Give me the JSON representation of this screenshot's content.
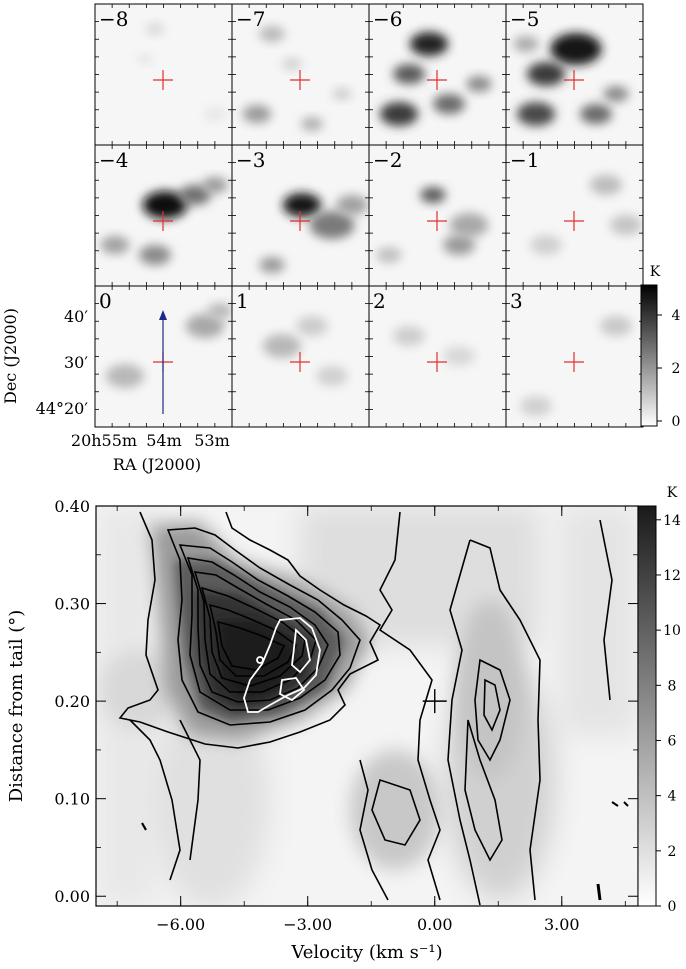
{
  "channel_maps": {
    "panel_labels": [
      "−8",
      "−7",
      "−6",
      "−5",
      "−4",
      "−3",
      "−2",
      "−1",
      "0",
      "1",
      "2",
      "3"
    ],
    "ra_ticks": [
      "20h55m",
      "54m",
      "53m"
    ],
    "dec_ticks": [
      "40′",
      "30′",
      "44°20′"
    ],
    "xlabel": "RA (J2000)",
    "ylabel": "Dec (J2000)",
    "colorbar": {
      "unit": "K",
      "ticks": [
        "0",
        "2",
        "4"
      ],
      "range": [
        0,
        5
      ]
    },
    "marker_color": "#e03030",
    "arrow_color": "#1a2a8a"
  },
  "chart_data": {
    "type": "heatmap",
    "xlabel": "Velocity (km s⁻¹)",
    "ylabel": "Distance from tail (°)",
    "xlim": [
      -8.0,
      4.8
    ],
    "ylim": [
      -0.01,
      0.4
    ],
    "x_ticks": [
      -6.0,
      -3.0,
      0.0,
      3.0
    ],
    "x_tick_labels": [
      "−6.00",
      "−3.00",
      "0.00",
      "3.00"
    ],
    "y_ticks": [
      0.0,
      0.1,
      0.2,
      0.3,
      0.4
    ],
    "y_tick_labels": [
      "0.00",
      "0.10",
      "0.20",
      "0.30",
      "0.40"
    ],
    "colorbar": {
      "unit": "K",
      "ticks": [
        "0",
        "2",
        "4",
        "6",
        "8",
        "10",
        "12",
        "14"
      ],
      "range": [
        0,
        14.5
      ]
    },
    "cross_marker": {
      "x": 0.0,
      "y": 0.2
    }
  }
}
